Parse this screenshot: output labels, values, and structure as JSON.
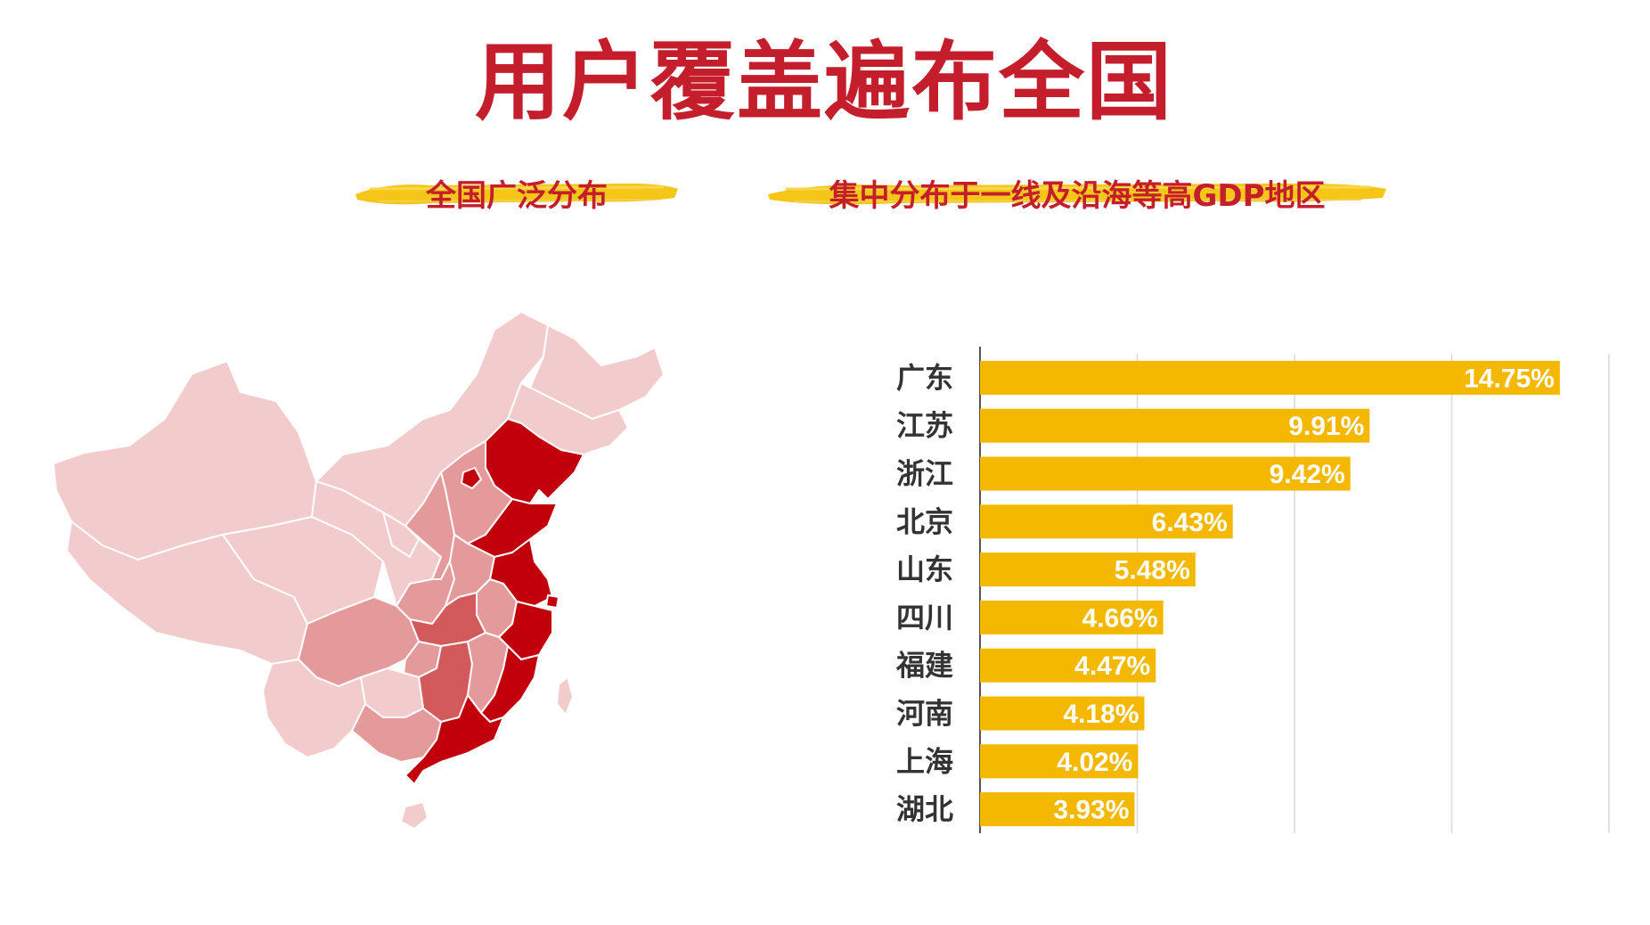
{
  "title": "用户覆盖遍布全国",
  "subtitles": {
    "left": "全国广泛分布",
    "right": "集中分布于一线及沿海等高GDP地区"
  },
  "colors": {
    "title": "#c41e2d",
    "highlight_stroke": "#f5c518",
    "bar": "#f5b800",
    "map_level_1": "#c1000c",
    "map_level_2": "#d35a5a",
    "map_level_3": "#e49a9a",
    "map_level_4": "#f2cccc",
    "gridline": "#d9d9d9"
  },
  "map": {
    "name": "china-map",
    "shading": "choropleth"
  },
  "chart_data": {
    "type": "bar",
    "orientation": "horizontal",
    "categories": [
      "广东",
      "江苏",
      "浙江",
      "北京",
      "山东",
      "四川",
      "福建",
      "河南",
      "上海",
      "湖北"
    ],
    "values": [
      14.75,
      9.91,
      9.42,
      6.43,
      5.48,
      4.66,
      4.47,
      4.18,
      4.02,
      3.93
    ],
    "value_labels": [
      "14.75%",
      "9.91%",
      "9.42%",
      "6.43%",
      "5.48%",
      "4.66%",
      "4.47%",
      "4.18%",
      "4.02%",
      "3.93%"
    ],
    "xlim": [
      0,
      16
    ],
    "grid": true,
    "title": "",
    "xlabel": "",
    "ylabel": ""
  }
}
